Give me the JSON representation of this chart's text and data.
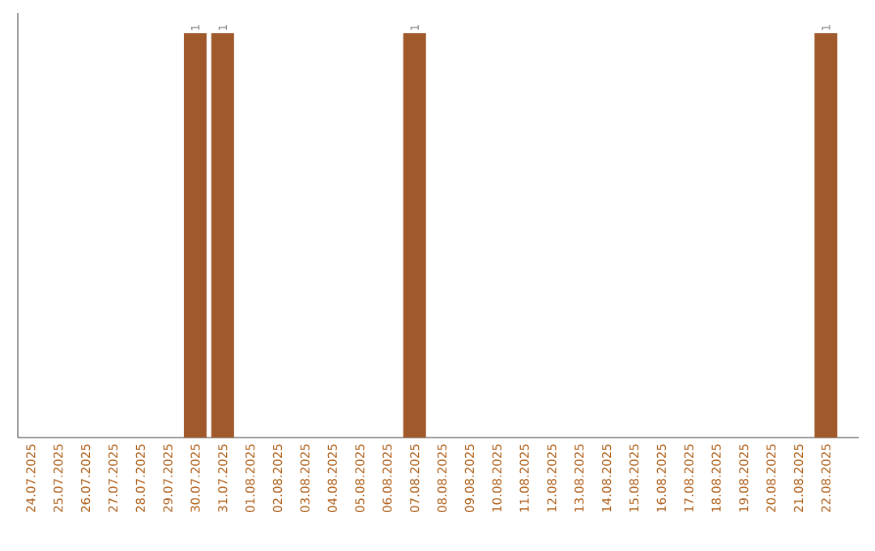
{
  "chart_data": {
    "type": "bar",
    "categories": [
      "24.07.2025",
      "25.07.2025",
      "26.07.2025",
      "27.07.2025",
      "28.07.2025",
      "29.07.2025",
      "30.07.2025",
      "31.07.2025",
      "01.08.2025",
      "02.08.2025",
      "03.08.2025",
      "04.08.2025",
      "05.08.2025",
      "06.08.2025",
      "07.08.2025",
      "08.08.2025",
      "09.08.2025",
      "10.08.2025",
      "11.08.2025",
      "12.08.2025",
      "13.08.2025",
      "14.08.2025",
      "15.08.2025",
      "16.08.2025",
      "17.08.2025",
      "18.08.2025",
      "19.08.2025",
      "20.08.2025",
      "21.08.2025",
      "22.08.2025"
    ],
    "values": [
      0,
      0,
      0,
      0,
      0,
      0,
      1,
      1,
      0,
      0,
      0,
      0,
      0,
      0,
      1,
      0,
      0,
      0,
      0,
      0,
      0,
      0,
      0,
      0,
      0,
      0,
      0,
      0,
      0,
      1
    ],
    "value_labels": [
      null,
      null,
      null,
      null,
      null,
      null,
      "1",
      "1",
      null,
      null,
      null,
      null,
      null,
      null,
      "1",
      null,
      null,
      null,
      null,
      null,
      null,
      null,
      null,
      null,
      null,
      null,
      null,
      null,
      null,
      "1"
    ],
    "color": "#a0592a"
  }
}
